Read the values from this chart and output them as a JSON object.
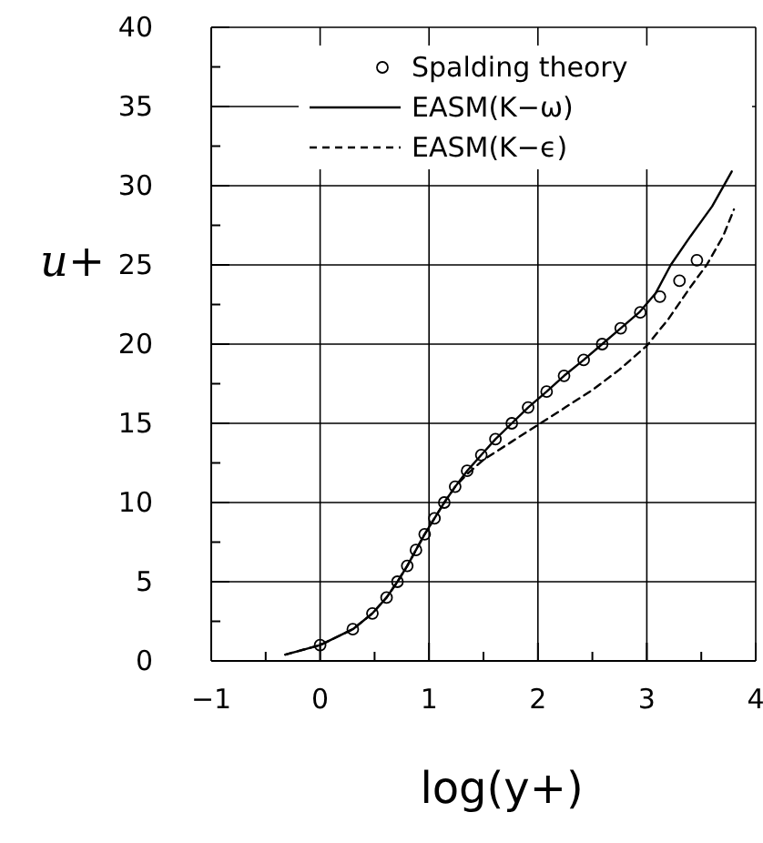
{
  "chart_data": {
    "type": "line",
    "xlabel": "log(y+)",
    "ylabel": "u+",
    "xlim": [
      -1,
      4
    ],
    "ylim": [
      0,
      40
    ],
    "xticks": [
      -1,
      {
        "value": -0.5,
        "label": null
      },
      0,
      {
        "value": 0.5,
        "label": null
      },
      1,
      {
        "value": 1.5,
        "label": null
      },
      2,
      {
        "value": 2.5,
        "label": null
      },
      3,
      {
        "value": 3.5,
        "label": null
      },
      4
    ],
    "yticks": [
      0,
      {
        "value": 2.5,
        "label": null
      },
      5,
      {
        "value": 7.5,
        "label": null
      },
      10,
      {
        "value": 12.5,
        "label": null
      },
      15,
      {
        "value": 17.5,
        "label": null
      },
      20,
      {
        "value": 22.5,
        "label": null
      },
      25,
      {
        "value": 27.5,
        "label": null
      },
      30,
      {
        "value": 32.5,
        "label": null
      },
      35,
      {
        "value": 37.5,
        "label": null
      },
      40
    ],
    "grid": true,
    "legend": "top right",
    "series": [
      {
        "name": "Spalding theory",
        "type": "scatter",
        "marker": "circle",
        "color": "#000000",
        "x": [
          0,
          0.3,
          0.48,
          0.61,
          0.71,
          0.8,
          0.88,
          0.96,
          1.05,
          1.14,
          1.24,
          1.35,
          1.48,
          1.61,
          1.76,
          1.91,
          2.08,
          2.24,
          2.42,
          2.59,
          2.76,
          2.94,
          3.12,
          3.3,
          3.46
        ],
        "values": [
          1,
          2,
          3,
          4,
          5,
          6,
          7,
          8,
          9,
          10,
          11,
          12,
          13,
          14,
          15,
          16,
          17,
          18,
          19,
          20,
          21,
          22,
          23,
          24,
          25.3
        ]
      },
      {
        "name": "EASM(K−ω)",
        "marker": "none",
        "line_style": "solid",
        "color": "#000000",
        "x": [
          -0.32,
          0,
          0.3,
          0.48,
          0.61,
          0.71,
          0.8,
          0.88,
          0.96,
          1.05,
          1.14,
          1.24,
          1.35,
          1.48,
          1.61,
          1.76,
          1.91,
          2.08,
          2.24,
          2.42,
          2.59,
          2.76,
          2.93,
          3.08,
          3.22,
          3.4,
          3.6,
          3.78
        ],
        "values": [
          0.4,
          1,
          2,
          3,
          4,
          5,
          6,
          7,
          8,
          9,
          10,
          11,
          12,
          13,
          14,
          15,
          16,
          17,
          18,
          19,
          20,
          21,
          22,
          23.2,
          25,
          26.8,
          28.7,
          30.9
        ]
      },
      {
        "name": "EASM(K−ϵ)",
        "marker": "none",
        "line_style": "dashed",
        "color": "#000000",
        "x": [
          -0.32,
          0,
          0.3,
          0.48,
          0.61,
          0.71,
          0.8,
          0.88,
          0.96,
          1.05,
          1.14,
          1.24,
          1.35,
          1.5,
          1.75,
          2.0,
          2.25,
          2.5,
          2.75,
          3.0,
          3.2,
          3.4,
          3.55,
          3.7,
          3.8
        ],
        "values": [
          0.4,
          1,
          2,
          3,
          4,
          5,
          6,
          7,
          8,
          9,
          10,
          11,
          11.8,
          12.7,
          13.8,
          14.9,
          16,
          17.1,
          18.4,
          19.9,
          21.6,
          23.6,
          25,
          26.8,
          28.5
        ]
      }
    ]
  }
}
